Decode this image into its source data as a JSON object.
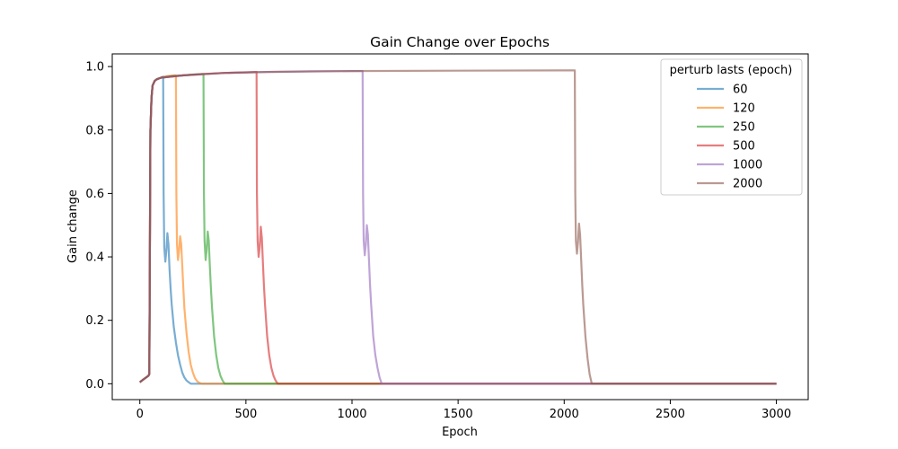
{
  "chart_data": {
    "type": "line",
    "title": "Gain Change over Epochs",
    "xlabel": "Epoch",
    "ylabel": "Gain change",
    "xlim": [
      -130,
      3150
    ],
    "ylim": [
      -0.05,
      1.04
    ],
    "xticks": [
      0,
      500,
      1000,
      1500,
      2000,
      2500,
      3000
    ],
    "yticks": [
      0.0,
      0.2,
      0.4,
      0.6,
      0.8,
      1.0
    ],
    "xtick_labels": [
      "0",
      "500",
      "1000",
      "1500",
      "2000",
      "2500",
      "3000"
    ],
    "ytick_labels": [
      "0.0",
      "0.2",
      "0.4",
      "0.6",
      "0.8",
      "1.0"
    ],
    "grid": false,
    "legend": {
      "title": "perturb lasts (epoch)",
      "placement": "top-right"
    },
    "series": [
      {
        "name": "60",
        "color": "#1f77b4",
        "x": [
          0,
          10,
          20,
          30,
          40,
          45,
          50,
          55,
          60,
          70,
          80,
          90,
          100,
          110,
          112,
          115,
          120,
          125,
          130,
          135,
          140,
          145,
          150,
          160,
          170,
          180,
          190,
          200,
          210,
          220,
          230,
          240,
          250,
          3000
        ],
        "y": [
          0.005,
          0.01,
          0.015,
          0.02,
          0.025,
          0.03,
          0.8,
          0.9,
          0.94,
          0.955,
          0.96,
          0.963,
          0.965,
          0.968,
          0.6,
          0.43,
          0.385,
          0.42,
          0.475,
          0.44,
          0.36,
          0.3,
          0.25,
          0.18,
          0.13,
          0.09,
          0.06,
          0.035,
          0.02,
          0.01,
          0.005,
          0.0,
          0.0,
          0.0
        ]
      },
      {
        "name": "120",
        "color": "#ff7f0e",
        "x": [
          0,
          10,
          20,
          30,
          40,
          45,
          50,
          55,
          60,
          70,
          80,
          100,
          130,
          160,
          170,
          172,
          175,
          180,
          185,
          190,
          195,
          200,
          205,
          210,
          220,
          230,
          240,
          250,
          260,
          270,
          280,
          290,
          3000
        ],
        "y": [
          0.005,
          0.01,
          0.015,
          0.02,
          0.025,
          0.03,
          0.8,
          0.9,
          0.94,
          0.955,
          0.96,
          0.965,
          0.97,
          0.972,
          0.972,
          0.6,
          0.44,
          0.39,
          0.42,
          0.465,
          0.44,
          0.37,
          0.3,
          0.24,
          0.16,
          0.1,
          0.06,
          0.035,
          0.018,
          0.008,
          0.003,
          0.0,
          0.0
        ]
      },
      {
        "name": "250",
        "color": "#2ca02c",
        "x": [
          0,
          10,
          20,
          30,
          40,
          45,
          50,
          55,
          60,
          70,
          80,
          100,
          150,
          200,
          250,
          300,
          302,
          305,
          310,
          315,
          320,
          325,
          330,
          335,
          340,
          350,
          360,
          370,
          380,
          390,
          400,
          3000
        ],
        "y": [
          0.005,
          0.01,
          0.015,
          0.02,
          0.025,
          0.03,
          0.8,
          0.9,
          0.94,
          0.955,
          0.96,
          0.965,
          0.97,
          0.972,
          0.975,
          0.977,
          0.6,
          0.45,
          0.39,
          0.42,
          0.48,
          0.45,
          0.37,
          0.3,
          0.24,
          0.15,
          0.09,
          0.05,
          0.025,
          0.01,
          0.0,
          0.0
        ]
      },
      {
        "name": "500",
        "color": "#d62728",
        "x": [
          0,
          10,
          20,
          30,
          40,
          45,
          50,
          55,
          60,
          70,
          80,
          100,
          200,
          300,
          400,
          500,
          550,
          552,
          555,
          560,
          565,
          570,
          575,
          580,
          585,
          590,
          600,
          610,
          620,
          630,
          640,
          650,
          3000
        ],
        "y": [
          0.005,
          0.01,
          0.015,
          0.02,
          0.025,
          0.03,
          0.8,
          0.9,
          0.94,
          0.955,
          0.96,
          0.965,
          0.972,
          0.977,
          0.98,
          0.982,
          0.983,
          0.6,
          0.45,
          0.4,
          0.43,
          0.495,
          0.46,
          0.38,
          0.31,
          0.25,
          0.15,
          0.09,
          0.05,
          0.025,
          0.01,
          0.0,
          0.0
        ]
      },
      {
        "name": "1000",
        "color": "#9467bd",
        "x": [
          0,
          10,
          20,
          30,
          40,
          45,
          50,
          55,
          60,
          70,
          80,
          100,
          200,
          400,
          600,
          800,
          1000,
          1050,
          1052,
          1055,
          1060,
          1065,
          1070,
          1075,
          1080,
          1085,
          1090,
          1100,
          1110,
          1120,
          1130,
          1140,
          3000
        ],
        "y": [
          0.005,
          0.01,
          0.015,
          0.02,
          0.025,
          0.03,
          0.8,
          0.9,
          0.94,
          0.955,
          0.96,
          0.965,
          0.972,
          0.98,
          0.983,
          0.985,
          0.986,
          0.986,
          0.6,
          0.45,
          0.405,
          0.44,
          0.5,
          0.47,
          0.39,
          0.31,
          0.25,
          0.15,
          0.09,
          0.05,
          0.02,
          0.0,
          0.0
        ]
      },
      {
        "name": "2000",
        "color": "#8c564b",
        "x": [
          0,
          10,
          20,
          30,
          40,
          45,
          50,
          55,
          60,
          70,
          80,
          100,
          200,
          400,
          600,
          1000,
          1500,
          2000,
          2050,
          2052,
          2055,
          2060,
          2065,
          2070,
          2075,
          2080,
          2085,
          2090,
          2100,
          2110,
          2120,
          2130,
          3000
        ],
        "y": [
          0.005,
          0.01,
          0.015,
          0.02,
          0.025,
          0.03,
          0.8,
          0.9,
          0.94,
          0.955,
          0.96,
          0.965,
          0.972,
          0.98,
          0.983,
          0.986,
          0.987,
          0.988,
          0.988,
          0.6,
          0.45,
          0.41,
          0.445,
          0.505,
          0.47,
          0.39,
          0.31,
          0.25,
          0.15,
          0.08,
          0.03,
          0.0,
          0.0
        ]
      }
    ]
  }
}
